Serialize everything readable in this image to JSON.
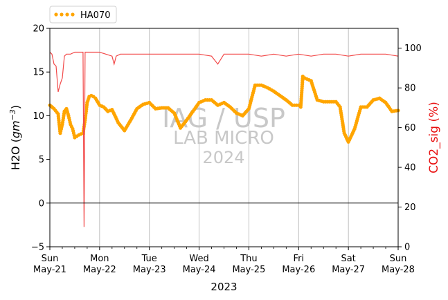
{
  "chart_data": {
    "type": "line",
    "legend": {
      "placement": "top-left",
      "entries": [
        "HA070"
      ]
    },
    "watermark": [
      "IAG / USP",
      "LAB MICRO",
      "2024"
    ],
    "xlabel": "2023",
    "xlim": [
      "2023-05-21",
      "2023-05-28"
    ],
    "x_ticks": [
      {
        "day": "Sun",
        "date": "May-21"
      },
      {
        "day": "Mon",
        "date": "May-22"
      },
      {
        "day": "Tue",
        "date": "May-23"
      },
      {
        "day": "Wed",
        "date": "May-24"
      },
      {
        "day": "Thu",
        "date": "May-25"
      },
      {
        "day": "Fri",
        "date": "May-26"
      },
      {
        "day": "Sat",
        "date": "May-27"
      },
      {
        "day": "Sun",
        "date": "May-28"
      }
    ],
    "ylabel": "H2O (gm^-3)",
    "ylim": [
      -5,
      20
    ],
    "yticks": [
      "−5",
      "0",
      "5",
      "10",
      "15",
      "20"
    ],
    "y2label": "CO2_sig (%)",
    "y2lim": [
      0,
      110
    ],
    "y2ticks": [
      "0",
      "20",
      "40",
      "60",
      "80",
      "100"
    ],
    "grid": "vertical, at day ticks",
    "zero_line": 0,
    "series": [
      {
        "name": "HA070",
        "axis": "left",
        "style": "dotted",
        "color": "#ffa500",
        "x": [
          "2023-05-21 00:00",
          "2023-05-21 02:00",
          "2023-05-21 04:00",
          "2023-05-21 05:00",
          "2023-05-21 06:00",
          "2023-05-21 07:00",
          "2023-05-21 08:00",
          "2023-05-21 09:00",
          "2023-05-21 10:00",
          "2023-05-21 11:00",
          "2023-05-21 12:00",
          "2023-05-21 14:00",
          "2023-05-21 16:00",
          "2023-05-21 17:00",
          "2023-05-21 18:00",
          "2023-05-21 19:00",
          "2023-05-21 20:00",
          "2023-05-21 21:00",
          "2023-05-21 22:00",
          "2023-05-22 00:00",
          "2023-05-22 02:00",
          "2023-05-22 04:00",
          "2023-05-22 06:00",
          "2023-05-22 09:00",
          "2023-05-22 12:00",
          "2023-05-22 15:00",
          "2023-05-22 18:00",
          "2023-05-22 21:00",
          "2023-05-23 00:00",
          "2023-05-23 03:00",
          "2023-05-23 06:00",
          "2023-05-23 09:00",
          "2023-05-23 12:00",
          "2023-05-23 15:00",
          "2023-05-23 18:00",
          "2023-05-23 21:00",
          "2023-05-24 00:00",
          "2023-05-24 03:00",
          "2023-05-24 06:00",
          "2023-05-24 09:00",
          "2023-05-24 12:00",
          "2023-05-24 15:00",
          "2023-05-24 18:00",
          "2023-05-24 21:00",
          "2023-05-25 00:00",
          "2023-05-25 03:00",
          "2023-05-25 06:00",
          "2023-05-25 09:00",
          "2023-05-25 12:00",
          "2023-05-25 15:00",
          "2023-05-25 18:00",
          "2023-05-25 21:00",
          "2023-05-26 00:00",
          "2023-05-26 01:00",
          "2023-05-26 02:00",
          "2023-05-26 03:00",
          "2023-05-26 06:00",
          "2023-05-26 09:00",
          "2023-05-26 12:00",
          "2023-05-26 15:00",
          "2023-05-26 18:00",
          "2023-05-26 20:00",
          "2023-05-26 22:00",
          "2023-05-27 00:00",
          "2023-05-27 03:00",
          "2023-05-27 06:00",
          "2023-05-27 09:00",
          "2023-05-27 12:00",
          "2023-05-27 15:00",
          "2023-05-27 18:00",
          "2023-05-27 21:00",
          "2023-05-28 00:00"
        ],
        "values": [
          11.2,
          10.8,
          10.2,
          8.0,
          9.0,
          10.5,
          10.8,
          10.0,
          9.0,
          8.5,
          7.5,
          7.8,
          8.0,
          9.5,
          11.5,
          12.2,
          12.3,
          12.2,
          12.0,
          11.2,
          11.0,
          10.5,
          10.7,
          9.2,
          8.3,
          9.5,
          10.8,
          11.3,
          11.5,
          10.8,
          10.9,
          10.9,
          10.3,
          8.6,
          9.5,
          10.5,
          11.5,
          11.8,
          11.8,
          11.2,
          11.5,
          11.0,
          10.3,
          10.0,
          10.8,
          13.5,
          13.5,
          13.2,
          12.8,
          12.3,
          11.8,
          11.2,
          11.2,
          11.0,
          14.5,
          14.3,
          14.0,
          11.8,
          11.6,
          11.6,
          11.6,
          11.0,
          8.0,
          7.0,
          8.5,
          11.0,
          11.0,
          11.8,
          12.0,
          11.5,
          10.5,
          10.6
        ]
      },
      {
        "name": "CO2_sig",
        "axis": "right",
        "style": "line",
        "color": "#f24a4a",
        "x": [
          "2023-05-21 00:00",
          "2023-05-21 01:00",
          "2023-05-21 02:00",
          "2023-05-21 03:00",
          "2023-05-21 04:00",
          "2023-05-21 05:00",
          "2023-05-21 06:00",
          "2023-05-21 07:00",
          "2023-05-21 08:00",
          "2023-05-21 09:00",
          "2023-05-21 10:00",
          "2023-05-21 12:00",
          "2023-05-21 14:00",
          "2023-05-21 16:00",
          "2023-05-21 16:30",
          "2023-05-21 17:00",
          "2023-05-21 18:00",
          "2023-05-21 21:00",
          "2023-05-22 00:00",
          "2023-05-22 03:00",
          "2023-05-22 06:00",
          "2023-05-22 07:00",
          "2023-05-22 08:00",
          "2023-05-22 10:00",
          "2023-05-22 14:00",
          "2023-05-22 18:00",
          "2023-05-23 00:00",
          "2023-05-23 06:00",
          "2023-05-23 12:00",
          "2023-05-23 18:00",
          "2023-05-24 00:00",
          "2023-05-24 06:00",
          "2023-05-24 09:00",
          "2023-05-24 12:00",
          "2023-05-24 18:00",
          "2023-05-25 00:00",
          "2023-05-25 06:00",
          "2023-05-25 12:00",
          "2023-05-25 18:00",
          "2023-05-26 00:00",
          "2023-05-26 06:00",
          "2023-05-26 12:00",
          "2023-05-26 18:00",
          "2023-05-27 00:00",
          "2023-05-27 06:00",
          "2023-05-27 12:00",
          "2023-05-27 18:00",
          "2023-05-28 00:00"
        ],
        "values": [
          98,
          97,
          92,
          91,
          78,
          82,
          85,
          96,
          97,
          97,
          97,
          98,
          98,
          98,
          10,
          98,
          98,
          98,
          98,
          97,
          96,
          92,
          96,
          97,
          97,
          97,
          97,
          97,
          97,
          97,
          97,
          96,
          92,
          97,
          97,
          97,
          96,
          97,
          96,
          97,
          96,
          97,
          97,
          96,
          97,
          97,
          97,
          96
        ]
      }
    ]
  }
}
